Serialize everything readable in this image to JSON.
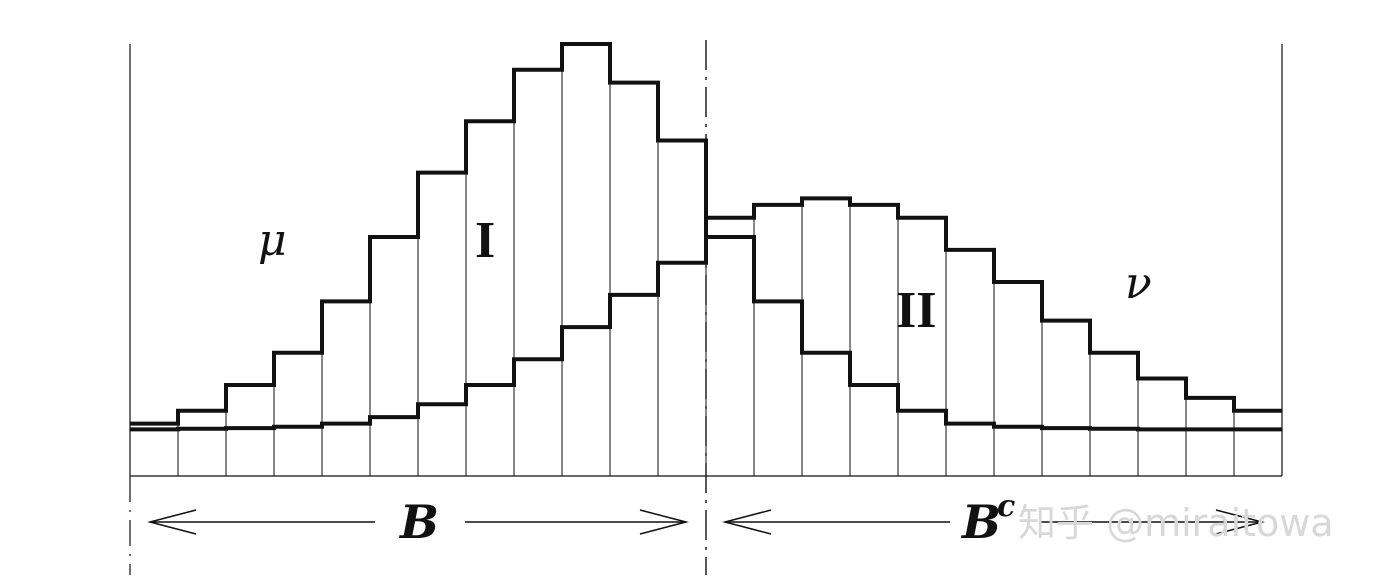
{
  "labels": {
    "mu": "μ",
    "nu": "ν",
    "region_one": "I",
    "region_two": "II",
    "set_b": "B",
    "set_b_complement_base": "B",
    "set_b_complement_sup": "c"
  },
  "watermark": "知乎 @miraitowa",
  "histograms": {
    "bins": 24,
    "mu": [
      1,
      3,
      7,
      12,
      20,
      30,
      40,
      48,
      56,
      60,
      54,
      45,
      30,
      20,
      12,
      7,
      3,
      1,
      0.5,
      0.3,
      0.2,
      0.1,
      0.1,
      0.1
    ],
    "nu": [
      0.1,
      0.2,
      0.3,
      0.5,
      1,
      2,
      4,
      7,
      11,
      16,
      21,
      26,
      33,
      35,
      36,
      35,
      33,
      28,
      23,
      17,
      12,
      8,
      5,
      3
    ]
  },
  "colors": {
    "ink": "#111111",
    "watermark": "#d8d8d8"
  }
}
